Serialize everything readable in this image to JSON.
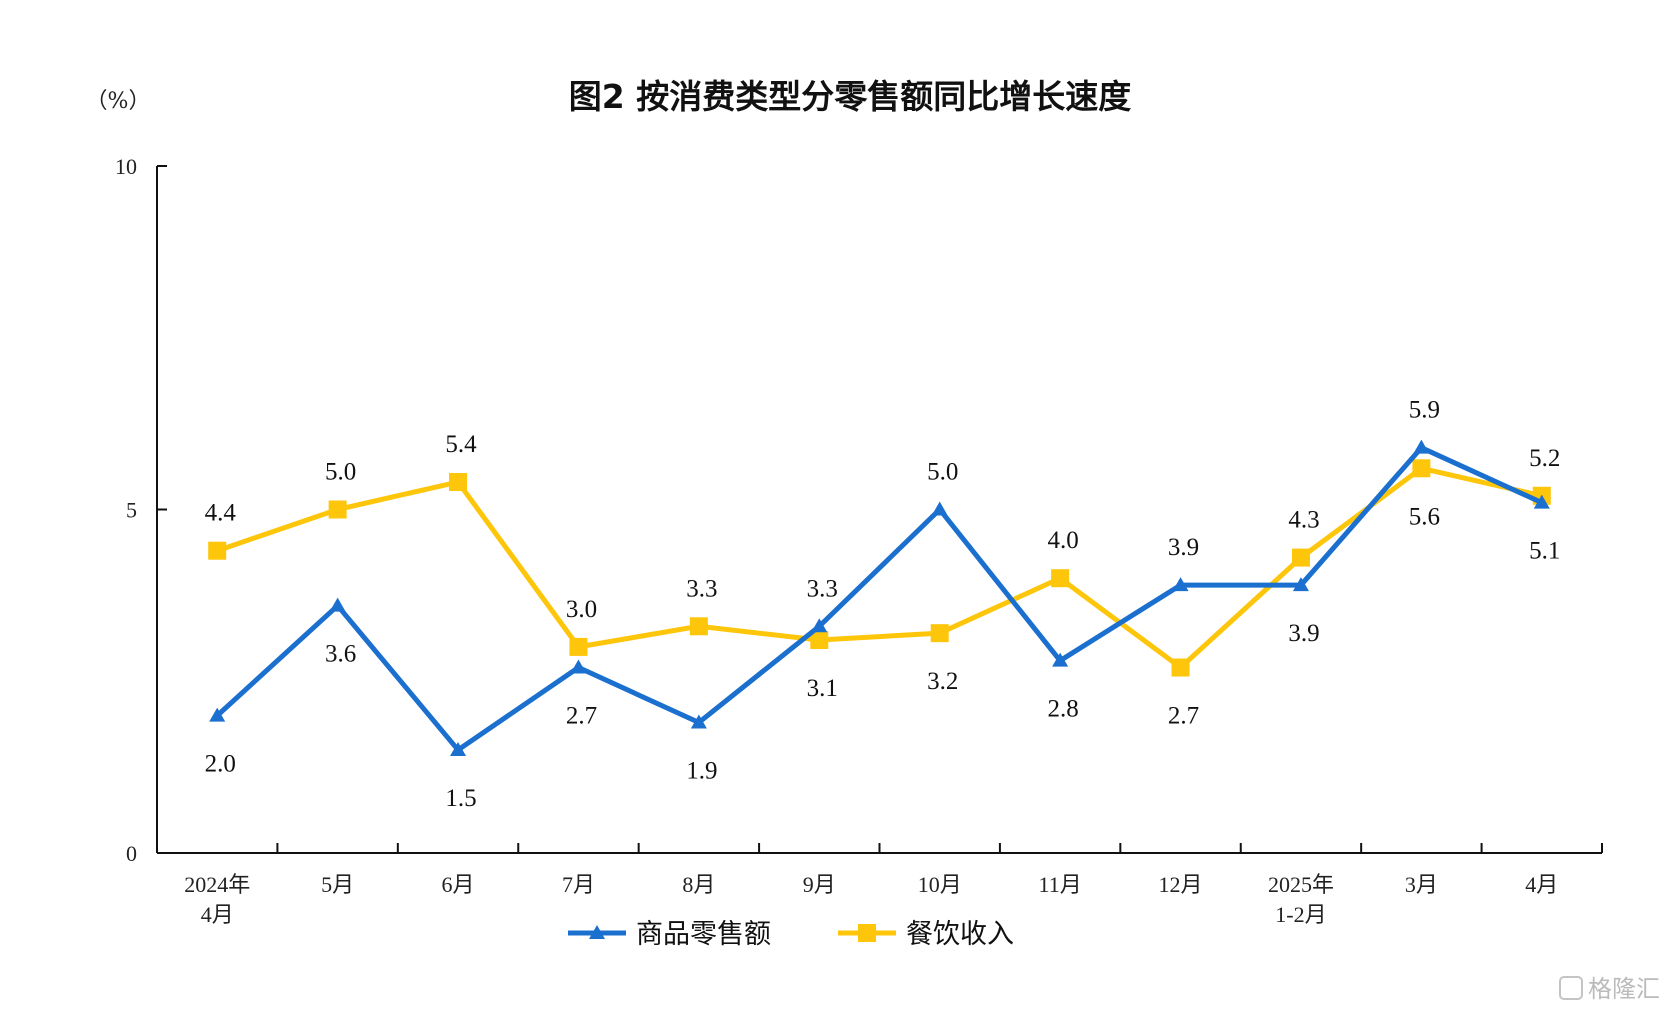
{
  "chart_data": {
    "type": "line",
    "title": "图2  按消费类型分零售额同比增长速度",
    "ylabel": "（%）",
    "xlabel": "",
    "ylim": [
      0,
      10
    ],
    "yticks": [
      0,
      5,
      10
    ],
    "categories": [
      [
        "2024年",
        "4月"
      ],
      [
        "5月"
      ],
      [
        "6月"
      ],
      [
        "7月"
      ],
      [
        "8月"
      ],
      [
        "9月"
      ],
      [
        "10月"
      ],
      [
        "11月"
      ],
      [
        "12月"
      ],
      [
        "2025年",
        "1-2月"
      ],
      [
        "3月"
      ],
      [
        "4月"
      ]
    ],
    "series": [
      {
        "name": "商品零售额",
        "color": "#1a6fcf",
        "marker": "triangle",
        "values": [
          2.0,
          3.6,
          1.5,
          2.7,
          1.9,
          3.3,
          5.0,
          2.8,
          3.9,
          3.9,
          5.9,
          5.1
        ],
        "labels": [
          "2.0",
          "3.6",
          "1.5",
          "2.7",
          "1.9",
          "3.3",
          "5.0",
          "2.8",
          "3.9",
          "3.9",
          "5.9",
          "5.1"
        ]
      },
      {
        "name": "餐饮收入",
        "color": "#fdc60a",
        "marker": "square",
        "values": [
          4.4,
          5.0,
          5.4,
          3.0,
          3.3,
          3.1,
          3.2,
          4.0,
          2.7,
          4.3,
          5.6,
          5.2
        ],
        "labels": [
          "4.4",
          "5.0",
          "5.4",
          "3.0",
          "3.3",
          "3.1",
          "3.2",
          "4.0",
          "2.7",
          "4.3",
          "5.6",
          "5.2"
        ]
      }
    ],
    "legend_position": "bottom",
    "grid": false
  },
  "watermark": "格隆汇"
}
